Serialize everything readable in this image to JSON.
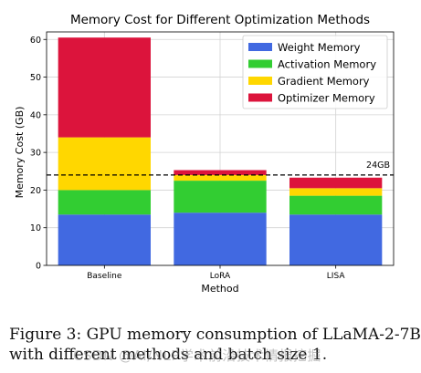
{
  "chart_data": {
    "type": "bar",
    "stacked": true,
    "title": "Memory Cost for Different Optimization Methods",
    "xlabel": "Method",
    "ylabel": "Memory Cost (GB)",
    "categories": [
      "Baseline",
      "LoRA",
      "LISA"
    ],
    "ylim": [
      0,
      62
    ],
    "yticks": [
      0,
      10,
      20,
      30,
      40,
      50,
      60
    ],
    "grid": true,
    "legend_position": "top-right",
    "series": [
      {
        "name": "Weight Memory",
        "color": "#4169e1",
        "values": [
          13.5,
          14.0,
          13.5
        ]
      },
      {
        "name": "Activation Memory",
        "color": "#32cd32",
        "values": [
          6.5,
          8.5,
          5.0
        ]
      },
      {
        "name": "Gradient Memory",
        "color": "#ffd700",
        "values": [
          14.0,
          1.5,
          2.0
        ]
      },
      {
        "name": "Optimizer Memory",
        "color": "#dc143c",
        "values": [
          26.5,
          1.3,
          2.8
        ]
      }
    ],
    "reference_line": {
      "value": 24,
      "label": "24GB",
      "style": "dashed",
      "color": "#000000"
    }
  },
  "caption": {
    "line1": "Figure 3: GPU memory consumption of LLaMA-2-7B",
    "line2": "with different methods and batch size 1."
  },
  "watermark": "CSDN @AI/NLP学术前沿技术情报挖掘"
}
